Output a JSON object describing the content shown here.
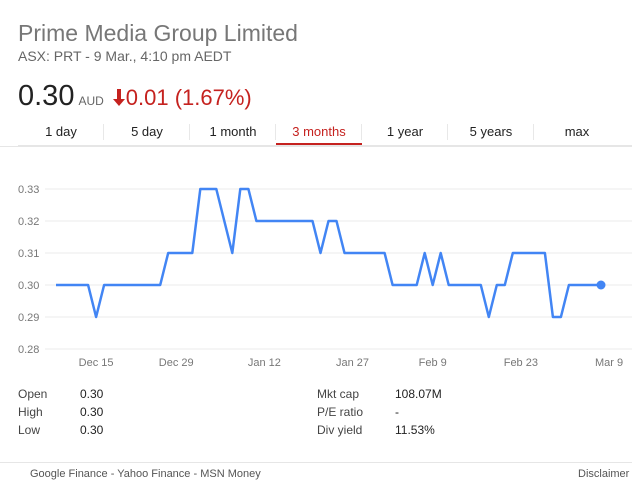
{
  "header": {
    "company": "Prime Media Group Limited",
    "subtitle": "ASX: PRT - 9 Mar., 4:10 pm AEDT",
    "price": "0.30",
    "currency": "AUD",
    "change": "0.01 (1.67%)",
    "change_direction": "down",
    "change_color": "#c5221f"
  },
  "tabs": [
    {
      "label": "1 day",
      "active": false
    },
    {
      "label": "5 day",
      "active": false
    },
    {
      "label": "1 month",
      "active": false
    },
    {
      "label": "3 months",
      "active": true
    },
    {
      "label": "1 year",
      "active": false
    },
    {
      "label": "5 years",
      "active": false
    },
    {
      "label": "max",
      "active": false
    }
  ],
  "chart_data": {
    "type": "line",
    "line_color": "#4285f4",
    "ylim": [
      0.28,
      0.335
    ],
    "yticks": [
      "0.33",
      "0.32",
      "0.31",
      "0.30",
      "0.29",
      "0.28"
    ],
    "ytick_values": [
      0.33,
      0.32,
      0.31,
      0.3,
      0.29,
      0.28
    ],
    "x_tick_labels": [
      "Dec 15",
      "Dec 29",
      "Jan 12",
      "Jan 27",
      "Feb 9",
      "Feb 23",
      "Mar 9"
    ],
    "x_tick_index": [
      5,
      15,
      26,
      37,
      47,
      58,
      69
    ],
    "grid": true,
    "series": [
      {
        "values": [
          0.3,
          0.3,
          0.3,
          0.3,
          0.3,
          0.29,
          0.3,
          0.3,
          0.3,
          0.3,
          0.3,
          0.3,
          0.3,
          0.3,
          0.31,
          0.31,
          0.31,
          0.31,
          0.33,
          0.33,
          0.33,
          0.32,
          0.31,
          0.33,
          0.33,
          0.32,
          0.32,
          0.32,
          0.32,
          0.32,
          0.32,
          0.32,
          0.32,
          0.31,
          0.32,
          0.32,
          0.31,
          0.31,
          0.31,
          0.31,
          0.31,
          0.31,
          0.3,
          0.3,
          0.3,
          0.3,
          0.31,
          0.3,
          0.31,
          0.3,
          0.3,
          0.3,
          0.3,
          0.3,
          0.29,
          0.3,
          0.3,
          0.31,
          0.31,
          0.31,
          0.31,
          0.31,
          0.29,
          0.29,
          0.3,
          0.3,
          0.3,
          0.3,
          0.3
        ],
        "last_point_marker": true
      }
    ]
  },
  "stats": {
    "left": [
      {
        "label": "Open",
        "value": "0.30"
      },
      {
        "label": "High",
        "value": "0.30"
      },
      {
        "label": "Low",
        "value": "0.30"
      }
    ],
    "right": [
      {
        "label": "Mkt cap",
        "value": "108.07M"
      },
      {
        "label": "P/E ratio",
        "value": "-"
      },
      {
        "label": "Div yield",
        "value": "11.53%"
      }
    ]
  },
  "footer": {
    "sources": "Google Finance - Yahoo Finance - MSN Money",
    "disclaimer": "Disclaimer"
  }
}
